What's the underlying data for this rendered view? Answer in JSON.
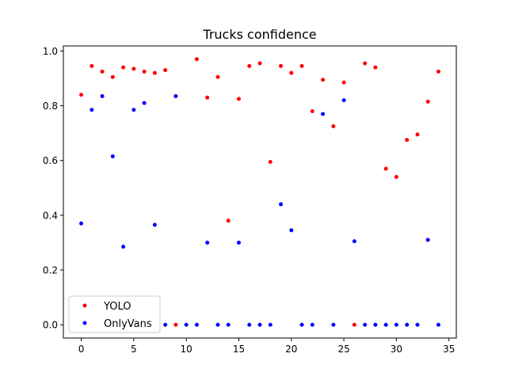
{
  "chart_data": {
    "type": "scatter",
    "title": "Trucks confidence",
    "xlabel": "",
    "ylabel": "",
    "xlim": [
      -1.7,
      35.7
    ],
    "ylim": [
      -0.0485,
      1.0185
    ],
    "xticks": [
      0,
      5,
      10,
      15,
      20,
      25,
      30,
      35
    ],
    "yticks": [
      0.0,
      0.2,
      0.4,
      0.6,
      0.8,
      1.0
    ],
    "xtick_labels": [
      "0",
      "5",
      "10",
      "15",
      "20",
      "25",
      "30",
      "35"
    ],
    "ytick_labels": [
      "0.0",
      "0.2",
      "0.4",
      "0.6",
      "0.8",
      "1.0"
    ],
    "grid": false,
    "legend_position": "lower-left",
    "series": [
      {
        "name": "YOLO",
        "color": "#ff0000",
        "x": [
          0,
          1,
          2,
          3,
          4,
          5,
          6,
          7,
          8,
          9,
          11,
          12,
          13,
          14,
          15,
          16,
          17,
          18,
          19,
          20,
          21,
          22,
          23,
          24,
          25,
          26,
          27,
          28,
          29,
          30,
          31,
          32,
          33,
          34
        ],
        "y": [
          0.84,
          0.945,
          0.925,
          0.905,
          0.94,
          0.935,
          0.925,
          0.92,
          0.93,
          0.0,
          0.97,
          0.83,
          0.905,
          0.38,
          0.825,
          0.945,
          0.955,
          0.595,
          0.945,
          0.92,
          0.945,
          0.78,
          0.895,
          0.725,
          0.885,
          0.0,
          0.955,
          0.94,
          0.57,
          0.54,
          0.675,
          0.695,
          0.815,
          0.925
        ]
      },
      {
        "name": "OnlyVans",
        "color": "#0000ff",
        "x": [
          0,
          1,
          2,
          3,
          4,
          5,
          6,
          7,
          8,
          9,
          10,
          11,
          12,
          13,
          14,
          15,
          16,
          17,
          18,
          19,
          20,
          21,
          22,
          23,
          24,
          25,
          26,
          27,
          28,
          29,
          30,
          31,
          32,
          33,
          34
        ],
        "y": [
          0.37,
          0.785,
          0.835,
          0.615,
          0.285,
          0.785,
          0.81,
          0.365,
          0.0,
          0.835,
          0.0,
          0.0,
          0.3,
          0.0,
          0.0,
          0.3,
          0.0,
          0.0,
          0.0,
          0.44,
          0.345,
          0.0,
          0.0,
          0.77,
          0.0,
          0.82,
          0.305,
          0.0,
          0.0,
          0.0,
          0.0,
          0.0,
          0.0,
          0.31,
          0.0
        ]
      }
    ]
  }
}
